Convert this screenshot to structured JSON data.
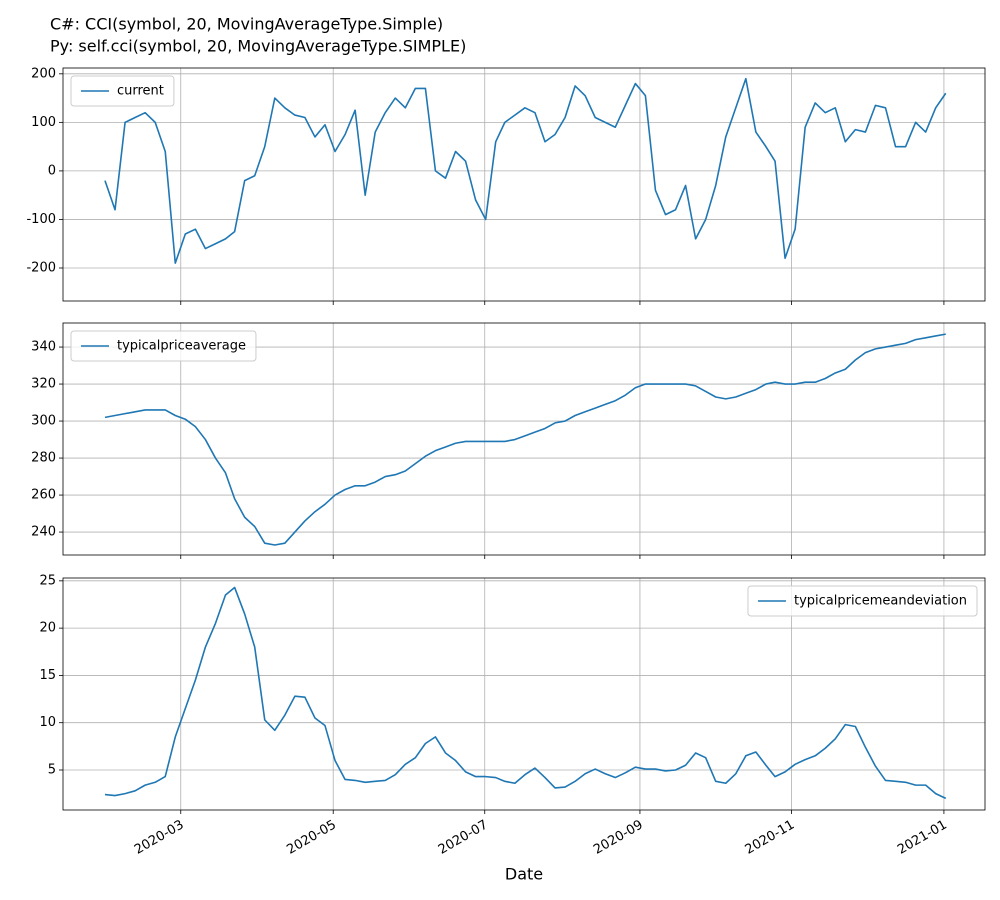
{
  "chart_data": [
    {
      "type": "line",
      "title": "C#: CCI(symbol, 20, MovingAverageType.Simple)",
      "subtitle": "Py:  self.cci(symbol, 20, MovingAverageType.SIMPLE)",
      "x": [
        2020.081,
        2020.092,
        2020.103,
        2020.114,
        2020.125,
        2020.136,
        2020.147,
        2020.158,
        2020.169,
        2020.18,
        2020.191,
        2020.202,
        2020.213,
        2020.223,
        2020.234,
        2020.245,
        2020.256,
        2020.267,
        2020.278,
        2020.289,
        2020.3,
        2020.311,
        2020.322,
        2020.333,
        2020.344,
        2020.355,
        2020.366,
        2020.377,
        2020.388,
        2020.399,
        2020.41,
        2020.421,
        2020.432,
        2020.443,
        2020.454,
        2020.465,
        2020.476,
        2020.487,
        2020.498,
        2020.509,
        2020.519,
        2020.53,
        2020.541,
        2020.552,
        2020.563,
        2020.574,
        2020.585,
        2020.596,
        2020.607,
        2020.618,
        2020.629,
        2020.64,
        2020.651,
        2020.662,
        2020.673,
        2020.684,
        2020.695,
        2020.706,
        2020.717,
        2020.728,
        2020.739,
        2020.75,
        2020.761,
        2020.772,
        2020.783,
        2020.794,
        2020.805,
        2020.815,
        2020.826,
        2020.837,
        2020.848,
        2020.859,
        2020.87,
        2020.881,
        2020.892,
        2020.903,
        2020.914,
        2020.925,
        2020.936,
        2020.947,
        2020.958,
        2020.969,
        2020.98,
        2020.991,
        2021.002
      ],
      "series": [
        {
          "name": "current",
          "color": "#1f77b4",
          "values": [
            -20,
            -80,
            100,
            110,
            120,
            100,
            40,
            -190,
            -130,
            -120,
            -160,
            -150,
            -140,
            -125,
            -20,
            -10,
            50,
            150,
            130,
            115,
            110,
            70,
            95,
            40,
            75,
            125,
            -50,
            80,
            120,
            150,
            130,
            170,
            170,
            0,
            -15,
            40,
            20,
            -60,
            -100,
            60,
            100,
            115,
            130,
            120,
            60,
            75,
            110,
            175,
            155,
            110,
            100,
            90,
            135,
            180,
            155,
            -40,
            -90,
            -80,
            -30,
            -140,
            -100,
            -30,
            70,
            130,
            190,
            80,
            50,
            20,
            -180,
            -120,
            90,
            140,
            120,
            130,
            60,
            85,
            80,
            135,
            130,
            50,
            50,
            100,
            80,
            130,
            160
          ]
        }
      ],
      "xlim": [
        2020.035,
        2021.045
      ],
      "xticks": [
        2020.164,
        2020.331,
        2020.497,
        2020.667,
        2020.833,
        2021.0
      ],
      "ylim": [
        -268,
        212
      ],
      "yticks": [
        -200,
        -100,
        0,
        100,
        200
      ],
      "grid": true,
      "legend": "upper left"
    },
    {
      "type": "line",
      "x": [
        2020.081,
        2020.092,
        2020.103,
        2020.114,
        2020.125,
        2020.136,
        2020.147,
        2020.158,
        2020.169,
        2020.18,
        2020.191,
        2020.202,
        2020.213,
        2020.223,
        2020.234,
        2020.245,
        2020.256,
        2020.267,
        2020.278,
        2020.289,
        2020.3,
        2020.311,
        2020.322,
        2020.333,
        2020.344,
        2020.355,
        2020.366,
        2020.377,
        2020.388,
        2020.399,
        2020.41,
        2020.421,
        2020.432,
        2020.443,
        2020.454,
        2020.465,
        2020.476,
        2020.487,
        2020.498,
        2020.509,
        2020.519,
        2020.53,
        2020.541,
        2020.552,
        2020.563,
        2020.574,
        2020.585,
        2020.596,
        2020.607,
        2020.618,
        2020.629,
        2020.64,
        2020.651,
        2020.662,
        2020.673,
        2020.684,
        2020.695,
        2020.706,
        2020.717,
        2020.728,
        2020.739,
        2020.75,
        2020.761,
        2020.772,
        2020.783,
        2020.794,
        2020.805,
        2020.815,
        2020.826,
        2020.837,
        2020.848,
        2020.859,
        2020.87,
        2020.881,
        2020.892,
        2020.903,
        2020.914,
        2020.925,
        2020.936,
        2020.947,
        2020.958,
        2020.969,
        2020.98,
        2020.991,
        2021.002
      ],
      "series": [
        {
          "name": "typicalpriceaverage",
          "color": "#1f77b4",
          "values": [
            302,
            303,
            304,
            305,
            306,
            306,
            306,
            303,
            301,
            297,
            290,
            280,
            272,
            258,
            248,
            243,
            234,
            233,
            234,
            240,
            246,
            251,
            255,
            260,
            263,
            265,
            265,
            267,
            270,
            271,
            273,
            277,
            281,
            284,
            286,
            288,
            289,
            289,
            289,
            289,
            289,
            290,
            292,
            294,
            296,
            299,
            300,
            303,
            305,
            307,
            309,
            311,
            314,
            318,
            320,
            320,
            320,
            320,
            320,
            319,
            316,
            313,
            312,
            313,
            315,
            317,
            320,
            321,
            320,
            320,
            321,
            321,
            323,
            326,
            328,
            333,
            337,
            339,
            340,
            341,
            342,
            344,
            345,
            346,
            347
          ]
        }
      ],
      "xlim": [
        2020.035,
        2021.045
      ],
      "xticks": [
        2020.164,
        2020.331,
        2020.497,
        2020.667,
        2020.833,
        2021.0
      ],
      "ylim": [
        227.6,
        353
      ],
      "yticks": [
        240,
        260,
        280,
        300,
        320,
        340
      ],
      "grid": true,
      "legend": "upper left"
    },
    {
      "type": "line",
      "xlabel": "Date",
      "x": [
        2020.081,
        2020.092,
        2020.103,
        2020.114,
        2020.125,
        2020.136,
        2020.147,
        2020.158,
        2020.169,
        2020.18,
        2020.191,
        2020.202,
        2020.213,
        2020.223,
        2020.234,
        2020.245,
        2020.256,
        2020.267,
        2020.278,
        2020.289,
        2020.3,
        2020.311,
        2020.322,
        2020.333,
        2020.344,
        2020.355,
        2020.366,
        2020.377,
        2020.388,
        2020.399,
        2020.41,
        2020.421,
        2020.432,
        2020.443,
        2020.454,
        2020.465,
        2020.476,
        2020.487,
        2020.498,
        2020.509,
        2020.519,
        2020.53,
        2020.541,
        2020.552,
        2020.563,
        2020.574,
        2020.585,
        2020.596,
        2020.607,
        2020.618,
        2020.629,
        2020.64,
        2020.651,
        2020.662,
        2020.673,
        2020.684,
        2020.695,
        2020.706,
        2020.717,
        2020.728,
        2020.739,
        2020.75,
        2020.761,
        2020.772,
        2020.783,
        2020.794,
        2020.805,
        2020.815,
        2020.826,
        2020.837,
        2020.848,
        2020.859,
        2020.87,
        2020.881,
        2020.892,
        2020.903,
        2020.914,
        2020.925,
        2020.936,
        2020.947,
        2020.958,
        2020.969,
        2020.98,
        2020.991,
        2021.002
      ],
      "series": [
        {
          "name": "typicalpricemeandeviation",
          "color": "#1f77b4",
          "values": [
            2.4,
            2.3,
            2.5,
            2.8,
            3.4,
            3.7,
            4.3,
            8.5,
            11.5,
            14.5,
            18,
            20.5,
            23.5,
            24.3,
            21.5,
            18,
            10.3,
            9.2,
            10.8,
            12.8,
            12.7,
            10.5,
            9.7,
            6,
            4,
            3.9,
            3.7,
            3.8,
            3.9,
            4.5,
            5.6,
            6.3,
            7.8,
            8.5,
            6.8,
            6,
            4.8,
            4.3,
            4.3,
            4.2,
            3.8,
            3.6,
            4.5,
            5.2,
            4.2,
            3.1,
            3.2,
            3.8,
            4.6,
            5.1,
            4.6,
            4.2,
            4.7,
            5.3,
            5.1,
            5.1,
            4.9,
            5,
            5.5,
            6.8,
            6.3,
            3.8,
            3.6,
            4.6,
            6.5,
            6.9,
            5.5,
            4.3,
            4.8,
            5.6,
            6.1,
            6.5,
            7.3,
            8.3,
            9.8,
            9.6,
            7.4,
            5.4,
            3.9,
            3.8,
            3.7,
            3.4,
            3.4,
            2.5,
            2.0
          ]
        }
      ],
      "xlim": [
        2020.035,
        2021.045
      ],
      "xticks": [
        {
          "value": 2020.164,
          "label": "2020-03"
        },
        {
          "value": 2020.331,
          "label": "2020-05"
        },
        {
          "value": 2020.497,
          "label": "2020-07"
        },
        {
          "value": 2020.667,
          "label": "2020-09"
        },
        {
          "value": 2020.833,
          "label": "2020-11"
        },
        {
          "value": 2021.0,
          "label": "2021-01"
        }
      ],
      "ylim": [
        0.77,
        25.3
      ],
      "yticks": [
        5,
        10,
        15,
        20,
        25
      ],
      "grid": true,
      "legend": "upper right"
    }
  ]
}
